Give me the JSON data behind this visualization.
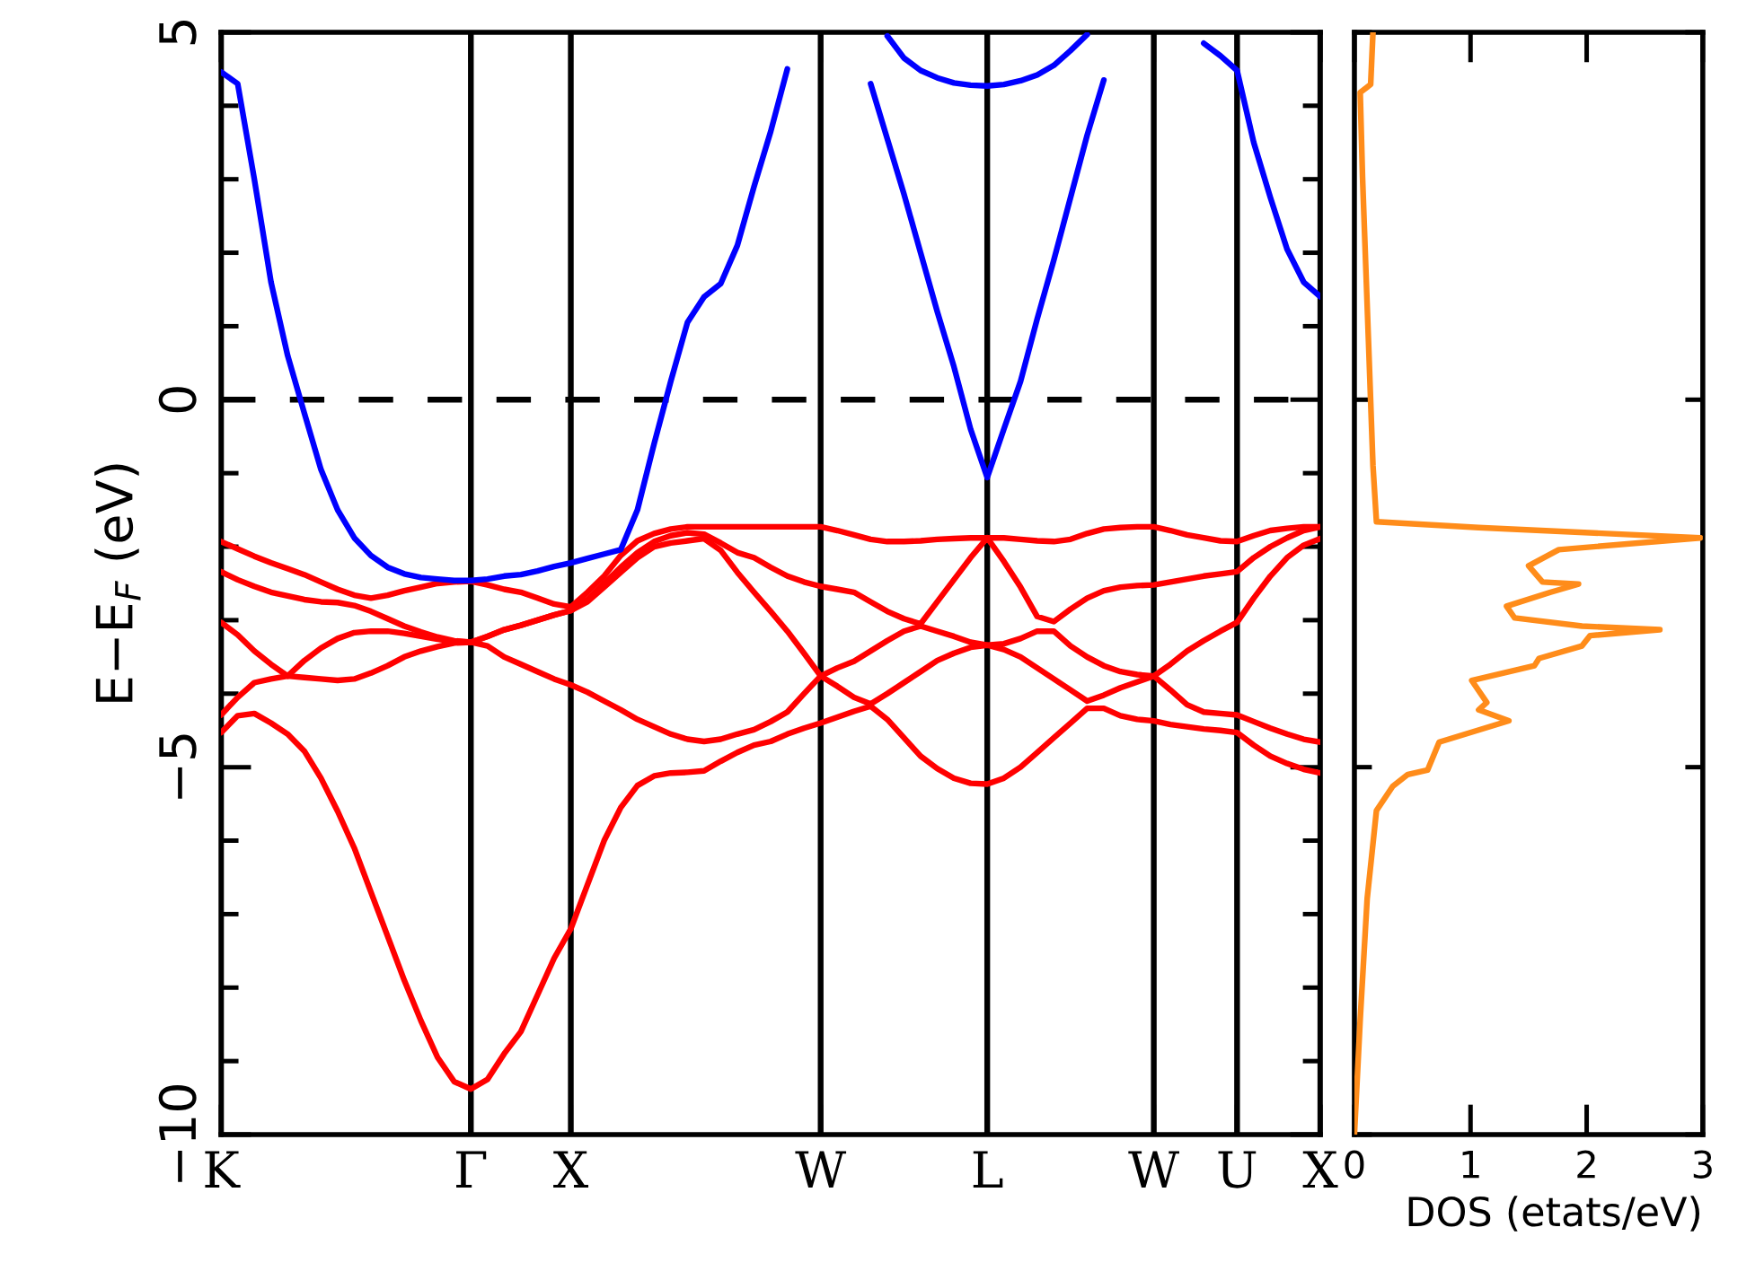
{
  "chart_data": [
    {
      "type": "line",
      "ylabel": "E−E$_{F}$ (eV)",
      "categories": [
        "K",
        null,
        null,
        null,
        null,
        null,
        null,
        null,
        null,
        null,
        null,
        null,
        null,
        null,
        null,
        "Γ",
        null,
        null,
        null,
        null,
        null,
        "X",
        null,
        null,
        null,
        null,
        null,
        null,
        null,
        null,
        null,
        null,
        null,
        null,
        null,
        null,
        "W",
        null,
        null,
        null,
        null,
        null,
        null,
        null,
        null,
        null,
        "L",
        null,
        null,
        null,
        null,
        null,
        null,
        null,
        null,
        null,
        "W",
        null,
        null,
        null,
        null,
        "U",
        null,
        null,
        null,
        null,
        "X"
      ],
      "series": [
        {
          "color": "#ff0000",
          "values": [
            -4.53,
            -4.3,
            -4.27,
            -4.4,
            -4.55,
            -4.78,
            -5.15,
            -5.6,
            -6.1,
            -6.7,
            -7.3,
            -7.9,
            -8.45,
            -8.95,
            -9.28,
            -9.38,
            -9.25,
            -8.9,
            -8.6,
            -8.1,
            -7.6,
            -7.2,
            -6.6,
            -6.0,
            -5.55,
            -5.25,
            -5.12,
            -5.08,
            -5.07,
            -5.05,
            -4.92,
            -4.8,
            -4.7,
            -4.65,
            -4.55,
            -4.47,
            -4.4,
            -4.32,
            -4.24,
            -4.17,
            -4.35,
            -4.6,
            -4.85,
            -5.02,
            -5.15,
            -5.22,
            -5.23,
            -5.15,
            -5.0,
            -4.8,
            -4.6,
            -4.4,
            -4.2,
            -4.2,
            -4.3,
            -4.35,
            -4.37,
            -4.42,
            -4.45,
            -4.48,
            -4.5,
            -4.53,
            -4.7,
            -4.85,
            -4.95,
            -5.03,
            -5.08
          ]
        },
        {
          "color": "#ff0000",
          "values": [
            -4.29,
            -4.05,
            -3.85,
            -3.8,
            -3.76,
            -3.78,
            -3.8,
            -3.82,
            -3.8,
            -3.72,
            -3.62,
            -3.5,
            -3.42,
            -3.36,
            -3.31,
            -3.3,
            -3.35,
            -3.5,
            -3.6,
            -3.7,
            -3.8,
            -3.88,
            -3.98,
            -4.1,
            -4.22,
            -4.35,
            -4.45,
            -4.55,
            -4.62,
            -4.65,
            -4.62,
            -4.55,
            -4.49,
            -4.38,
            -4.25,
            -4.0,
            -3.76,
            -3.9,
            -4.05,
            -4.14,
            -4.0,
            -3.85,
            -3.7,
            -3.55,
            -3.45,
            -3.37,
            -3.34,
            -3.4,
            -3.5,
            -3.65,
            -3.8,
            -3.95,
            -4.1,
            -4.02,
            -3.92,
            -3.84,
            -3.76,
            -3.95,
            -4.15,
            -4.25,
            -4.27,
            -4.29,
            -4.38,
            -4.47,
            -4.55,
            -4.62,
            -4.66
          ]
        },
        {
          "color": "#ff0000",
          "values": [
            -3.03,
            -3.2,
            -3.42,
            -3.6,
            -3.76,
            -3.55,
            -3.38,
            -3.25,
            -3.17,
            -3.15,
            -3.15,
            -3.18,
            -3.22,
            -3.26,
            -3.29,
            -3.3,
            -3.22,
            -3.13,
            -3.07,
            -3.0,
            -2.93,
            -2.87,
            -2.75,
            -2.55,
            -2.35,
            -2.15,
            -2.0,
            -1.95,
            -1.92,
            -1.89,
            -2.05,
            -2.35,
            -2.62,
            -2.88,
            -3.15,
            -3.45,
            -3.76,
            -3.65,
            -3.56,
            -3.42,
            -3.28,
            -3.15,
            -3.08,
            -3.15,
            -3.22,
            -3.3,
            -3.34,
            -3.32,
            -3.25,
            -3.15,
            -3.15,
            -3.35,
            -3.5,
            -3.62,
            -3.7,
            -3.74,
            -3.76,
            -3.6,
            -3.42,
            -3.28,
            -3.15,
            -3.03,
            -2.7,
            -2.4,
            -2.15,
            -1.98,
            -1.89
          ]
        },
        {
          "color": "#ff0000",
          "values": [
            -2.34,
            -2.45,
            -2.54,
            -2.62,
            -2.67,
            -2.72,
            -2.75,
            -2.76,
            -2.8,
            -2.88,
            -2.98,
            -3.08,
            -3.16,
            -3.23,
            -3.28,
            -3.3,
            -3.22,
            -3.13,
            -3.07,
            -3.0,
            -2.93,
            -2.87,
            -2.72,
            -2.5,
            -2.28,
            -2.08,
            -1.93,
            -1.85,
            -1.81,
            -1.83,
            -1.95,
            -2.08,
            -2.15,
            -2.28,
            -2.4,
            -2.48,
            -2.54,
            -2.58,
            -2.62,
            -2.75,
            -2.88,
            -2.98,
            -3.05,
            -2.75,
            -2.45,
            -2.15,
            -1.88,
            -2.2,
            -2.55,
            -2.95,
            -3.02,
            -2.85,
            -2.7,
            -2.6,
            -2.55,
            -2.53,
            -2.52,
            -2.48,
            -2.44,
            -2.4,
            -2.37,
            -2.34,
            -2.15,
            -2.0,
            -1.88,
            -1.78,
            -1.73
          ]
        },
        {
          "color": "#ff0000",
          "values": [
            -1.93,
            -2.03,
            -2.13,
            -2.22,
            -2.3,
            -2.38,
            -2.48,
            -2.58,
            -2.66,
            -2.7,
            -2.66,
            -2.6,
            -2.55,
            -2.5,
            -2.48,
            -2.47,
            -2.52,
            -2.58,
            -2.62,
            -2.7,
            -2.78,
            -2.82,
            -2.62,
            -2.4,
            -2.12,
            -1.92,
            -1.82,
            -1.76,
            -1.73,
            -1.73,
            -1.73,
            -1.73,
            -1.73,
            -1.73,
            -1.73,
            -1.73,
            -1.73,
            -1.78,
            -1.84,
            -1.9,
            -1.93,
            -1.93,
            -1.92,
            -1.9,
            -1.89,
            -1.88,
            -1.88,
            -1.88,
            -1.9,
            -1.92,
            -1.93,
            -1.9,
            -1.82,
            -1.76,
            -1.74,
            -1.73,
            -1.73,
            -1.78,
            -1.84,
            -1.88,
            -1.92,
            -1.93,
            -1.85,
            -1.78,
            -1.75,
            -1.73,
            -1.73
          ]
        },
        {
          "color": "#0000ff",
          "values": [
            4.46,
            4.3,
            3.0,
            1.6,
            0.6,
            -0.18,
            -0.95,
            -1.5,
            -1.88,
            -2.12,
            -2.28,
            -2.37,
            -2.42,
            -2.44,
            -2.46,
            -2.46,
            -2.44,
            -2.4,
            -2.38,
            -2.33,
            -2.27,
            -2.22,
            -2.16,
            -2.1,
            -2.04,
            -1.5,
            -0.6,
            0.25,
            1.05,
            1.4,
            1.58,
            2.1,
            2.9,
            3.65,
            4.5,
            null,
            null,
            null,
            null,
            4.3,
            3.55,
            2.8,
            2.0,
            1.2,
            0.45,
            -0.4,
            -1.06,
            -0.4,
            0.25,
            1.1,
            1.9,
            2.75,
            3.6,
            4.35,
            null,
            null,
            null,
            null,
            null,
            4.85,
            4.68,
            4.48,
            3.5,
            2.75,
            2.05,
            1.6,
            1.4
          ]
        },
        {
          "color": "#0000ff",
          "values": [
            null,
            null,
            null,
            null,
            null,
            null,
            null,
            null,
            null,
            null,
            null,
            null,
            null,
            null,
            null,
            null,
            null,
            null,
            null,
            null,
            null,
            null,
            null,
            null,
            null,
            null,
            null,
            null,
            null,
            null,
            null,
            null,
            null,
            null,
            null,
            null,
            null,
            null,
            null,
            null,
            4.95,
            4.65,
            4.48,
            4.38,
            4.31,
            4.28,
            4.27,
            4.29,
            4.34,
            4.42,
            4.55,
            4.75,
            4.97,
            null,
            null,
            null,
            null,
            null,
            null,
            null,
            null,
            null,
            null,
            null,
            null,
            null,
            null
          ]
        }
      ],
      "ylim": [
        -10,
        5
      ],
      "yticks": [
        {
          "value": -10,
          "label": "−10"
        },
        {
          "value": -9,
          "label": null
        },
        {
          "value": -8,
          "label": null
        },
        {
          "value": -7,
          "label": null
        },
        {
          "value": -6,
          "label": null
        },
        {
          "value": -5,
          "label": "−5"
        },
        {
          "value": -4,
          "label": null
        },
        {
          "value": -3,
          "label": null
        },
        {
          "value": -2,
          "label": null
        },
        {
          "value": -1,
          "label": null
        },
        0,
        {
          "value": 1,
          "label": null
        },
        {
          "value": 2,
          "label": null
        },
        {
          "value": 3,
          "label": null
        },
        {
          "value": 4,
          "label": null
        },
        5
      ],
      "grid": "x",
      "ref_lines": [
        {
          "axis": "y",
          "value": 0,
          "color": "#000000",
          "line_style": "dashed"
        }
      ]
    },
    {
      "type": "line",
      "xlabel": "DOS (etats/eV)",
      "series": [
        {
          "color": "#ff8c1a",
          "x": [
            0.16,
            0.14,
            0.05,
            0.07,
            0.12,
            0.16,
            0.19,
            1.07,
            2.98,
            1.76,
            1.5,
            1.62,
            1.93,
            1.69,
            1.31,
            1.38,
            1.96,
            2.63,
            2.03,
            1.96,
            1.59,
            1.55,
            1.01,
            1.14,
            1.07,
            1.33,
            0.73,
            0.63,
            0.46,
            0.33,
            0.19,
            0.11,
            0.05,
            0.0
          ],
          "values": [
            5.0,
            4.29,
            4.18,
            3.03,
            0.85,
            -0.9,
            -1.66,
            -1.74,
            -1.88,
            -2.04,
            -2.26,
            -2.48,
            -2.51,
            -2.62,
            -2.81,
            -2.97,
            -3.08,
            -3.13,
            -3.21,
            -3.35,
            -3.52,
            -3.62,
            -3.82,
            -4.12,
            -4.22,
            -4.37,
            -4.66,
            -5.04,
            -5.1,
            -5.26,
            -5.59,
            -6.79,
            -8.43,
            -10.0
          ]
        }
      ],
      "xlim": [
        0,
        3
      ],
      "xticks": [
        0,
        1,
        2,
        3
      ],
      "ylim": [
        -10,
        5
      ],
      "yticks": [
        {
          "value": -10,
          "label": null
        },
        {
          "value": -5,
          "label": null
        },
        {
          "value": 0,
          "label": null
        },
        {
          "value": 5,
          "label": null
        }
      ],
      "tick_labels": "x"
    }
  ]
}
